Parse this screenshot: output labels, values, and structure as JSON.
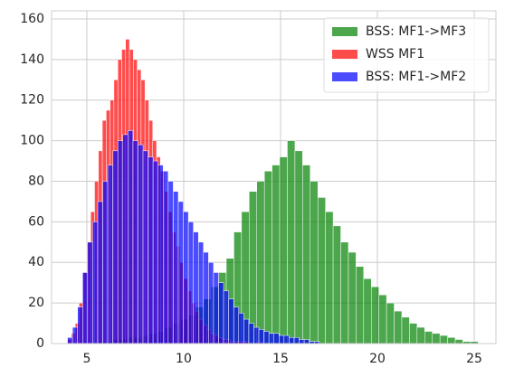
{
  "chart_data": {
    "type": "histogram",
    "xlim": [
      3.18,
      26.12
    ],
    "ylim": [
      0,
      164
    ],
    "xticks": [
      5,
      10,
      15,
      20,
      25
    ],
    "yticks": [
      0,
      20,
      40,
      60,
      80,
      100,
      120,
      140,
      160
    ],
    "grid": true,
    "legend": "upper right",
    "series": [
      {
        "name": "BSS: MF1->MF3",
        "color": "#008000",
        "bins": [
          5.5,
          5.894,
          6.288,
          6.682,
          7.076,
          7.47,
          7.864,
          8.258,
          8.652,
          9.046,
          9.44,
          9.834,
          10.228,
          10.622,
          11.016,
          11.41,
          11.804,
          12.198,
          12.592,
          12.986,
          13.38,
          13.774,
          14.168,
          14.562,
          14.956,
          15.35,
          15.744,
          16.138,
          16.532,
          16.926,
          17.32,
          17.714,
          18.108,
          18.502,
          18.896,
          19.29,
          19.684,
          20.078,
          20.472,
          20.866,
          21.26,
          21.654,
          22.048,
          22.442,
          22.836,
          23.23,
          23.624,
          24.018,
          24.412,
          24.806,
          25.2
        ],
        "values": [
          1,
          1,
          2,
          2,
          3,
          3,
          4,
          5,
          6,
          8,
          10,
          12,
          14,
          18,
          22,
          28,
          35,
          42,
          55,
          65,
          75,
          80,
          85,
          88,
          92,
          100,
          95,
          88,
          80,
          72,
          65,
          58,
          50,
          45,
          38,
          32,
          28,
          24,
          20,
          16,
          13,
          10,
          8,
          6,
          5,
          4,
          3,
          2,
          1,
          1
        ]
      },
      {
        "name": "WSS MF1",
        "color": "#ff0000",
        "bins": [
          4.0,
          4.2,
          4.4,
          4.6,
          4.8,
          5.0,
          5.2,
          5.4,
          5.6,
          5.8,
          6.0,
          6.2,
          6.4,
          6.6,
          6.8,
          7.0,
          7.2,
          7.4,
          7.6,
          7.8,
          8.0,
          8.2,
          8.4,
          8.6,
          8.8,
          9.0,
          9.2,
          9.4,
          9.6,
          9.8,
          10.0,
          10.2,
          10.4,
          10.6,
          10.8,
          11.0,
          11.2,
          11.4,
          11.6,
          11.8,
          12.0,
          12.2,
          12.4,
          12.6,
          12.8,
          13.0,
          13.2,
          13.4,
          13.6,
          13.8,
          14.0
        ],
        "values": [
          2,
          5,
          10,
          20,
          35,
          50,
          65,
          80,
          95,
          110,
          115,
          120,
          130,
          140,
          145,
          150,
          145,
          140,
          135,
          130,
          120,
          110,
          100,
          92,
          85,
          75,
          65,
          55,
          48,
          40,
          32,
          26,
          20,
          16,
          12,
          9,
          7,
          5,
          4,
          3,
          2,
          2,
          1,
          1,
          1,
          1,
          1,
          0,
          0,
          1
        ]
      },
      {
        "name": "BSS: MF1->MF2",
        "color": "#0000ff",
        "bins": [
          4.0,
          4.26,
          4.52,
          4.78,
          5.04,
          5.3,
          5.56,
          5.82,
          6.08,
          6.34,
          6.6,
          6.86,
          7.12,
          7.38,
          7.64,
          7.9,
          8.16,
          8.42,
          8.68,
          8.94,
          9.2,
          9.46,
          9.72,
          9.98,
          10.24,
          10.5,
          10.76,
          11.02,
          11.28,
          11.54,
          11.8,
          12.06,
          12.32,
          12.58,
          12.84,
          13.1,
          13.36,
          13.62,
          13.88,
          14.14,
          14.4,
          14.66,
          14.92,
          15.18,
          15.44,
          15.7,
          15.96,
          16.22,
          16.48,
          16.74,
          17.0
        ],
        "values": [
          3,
          8,
          18,
          35,
          50,
          60,
          70,
          80,
          88,
          95,
          100,
          103,
          105,
          100,
          98,
          95,
          92,
          90,
          88,
          85,
          80,
          75,
          70,
          65,
          60,
          55,
          50,
          45,
          40,
          35,
          30,
          26,
          22,
          18,
          15,
          12,
          10,
          8,
          7,
          6,
          5,
          5,
          4,
          4,
          3,
          3,
          2,
          2,
          1,
          1
        ]
      }
    ]
  }
}
